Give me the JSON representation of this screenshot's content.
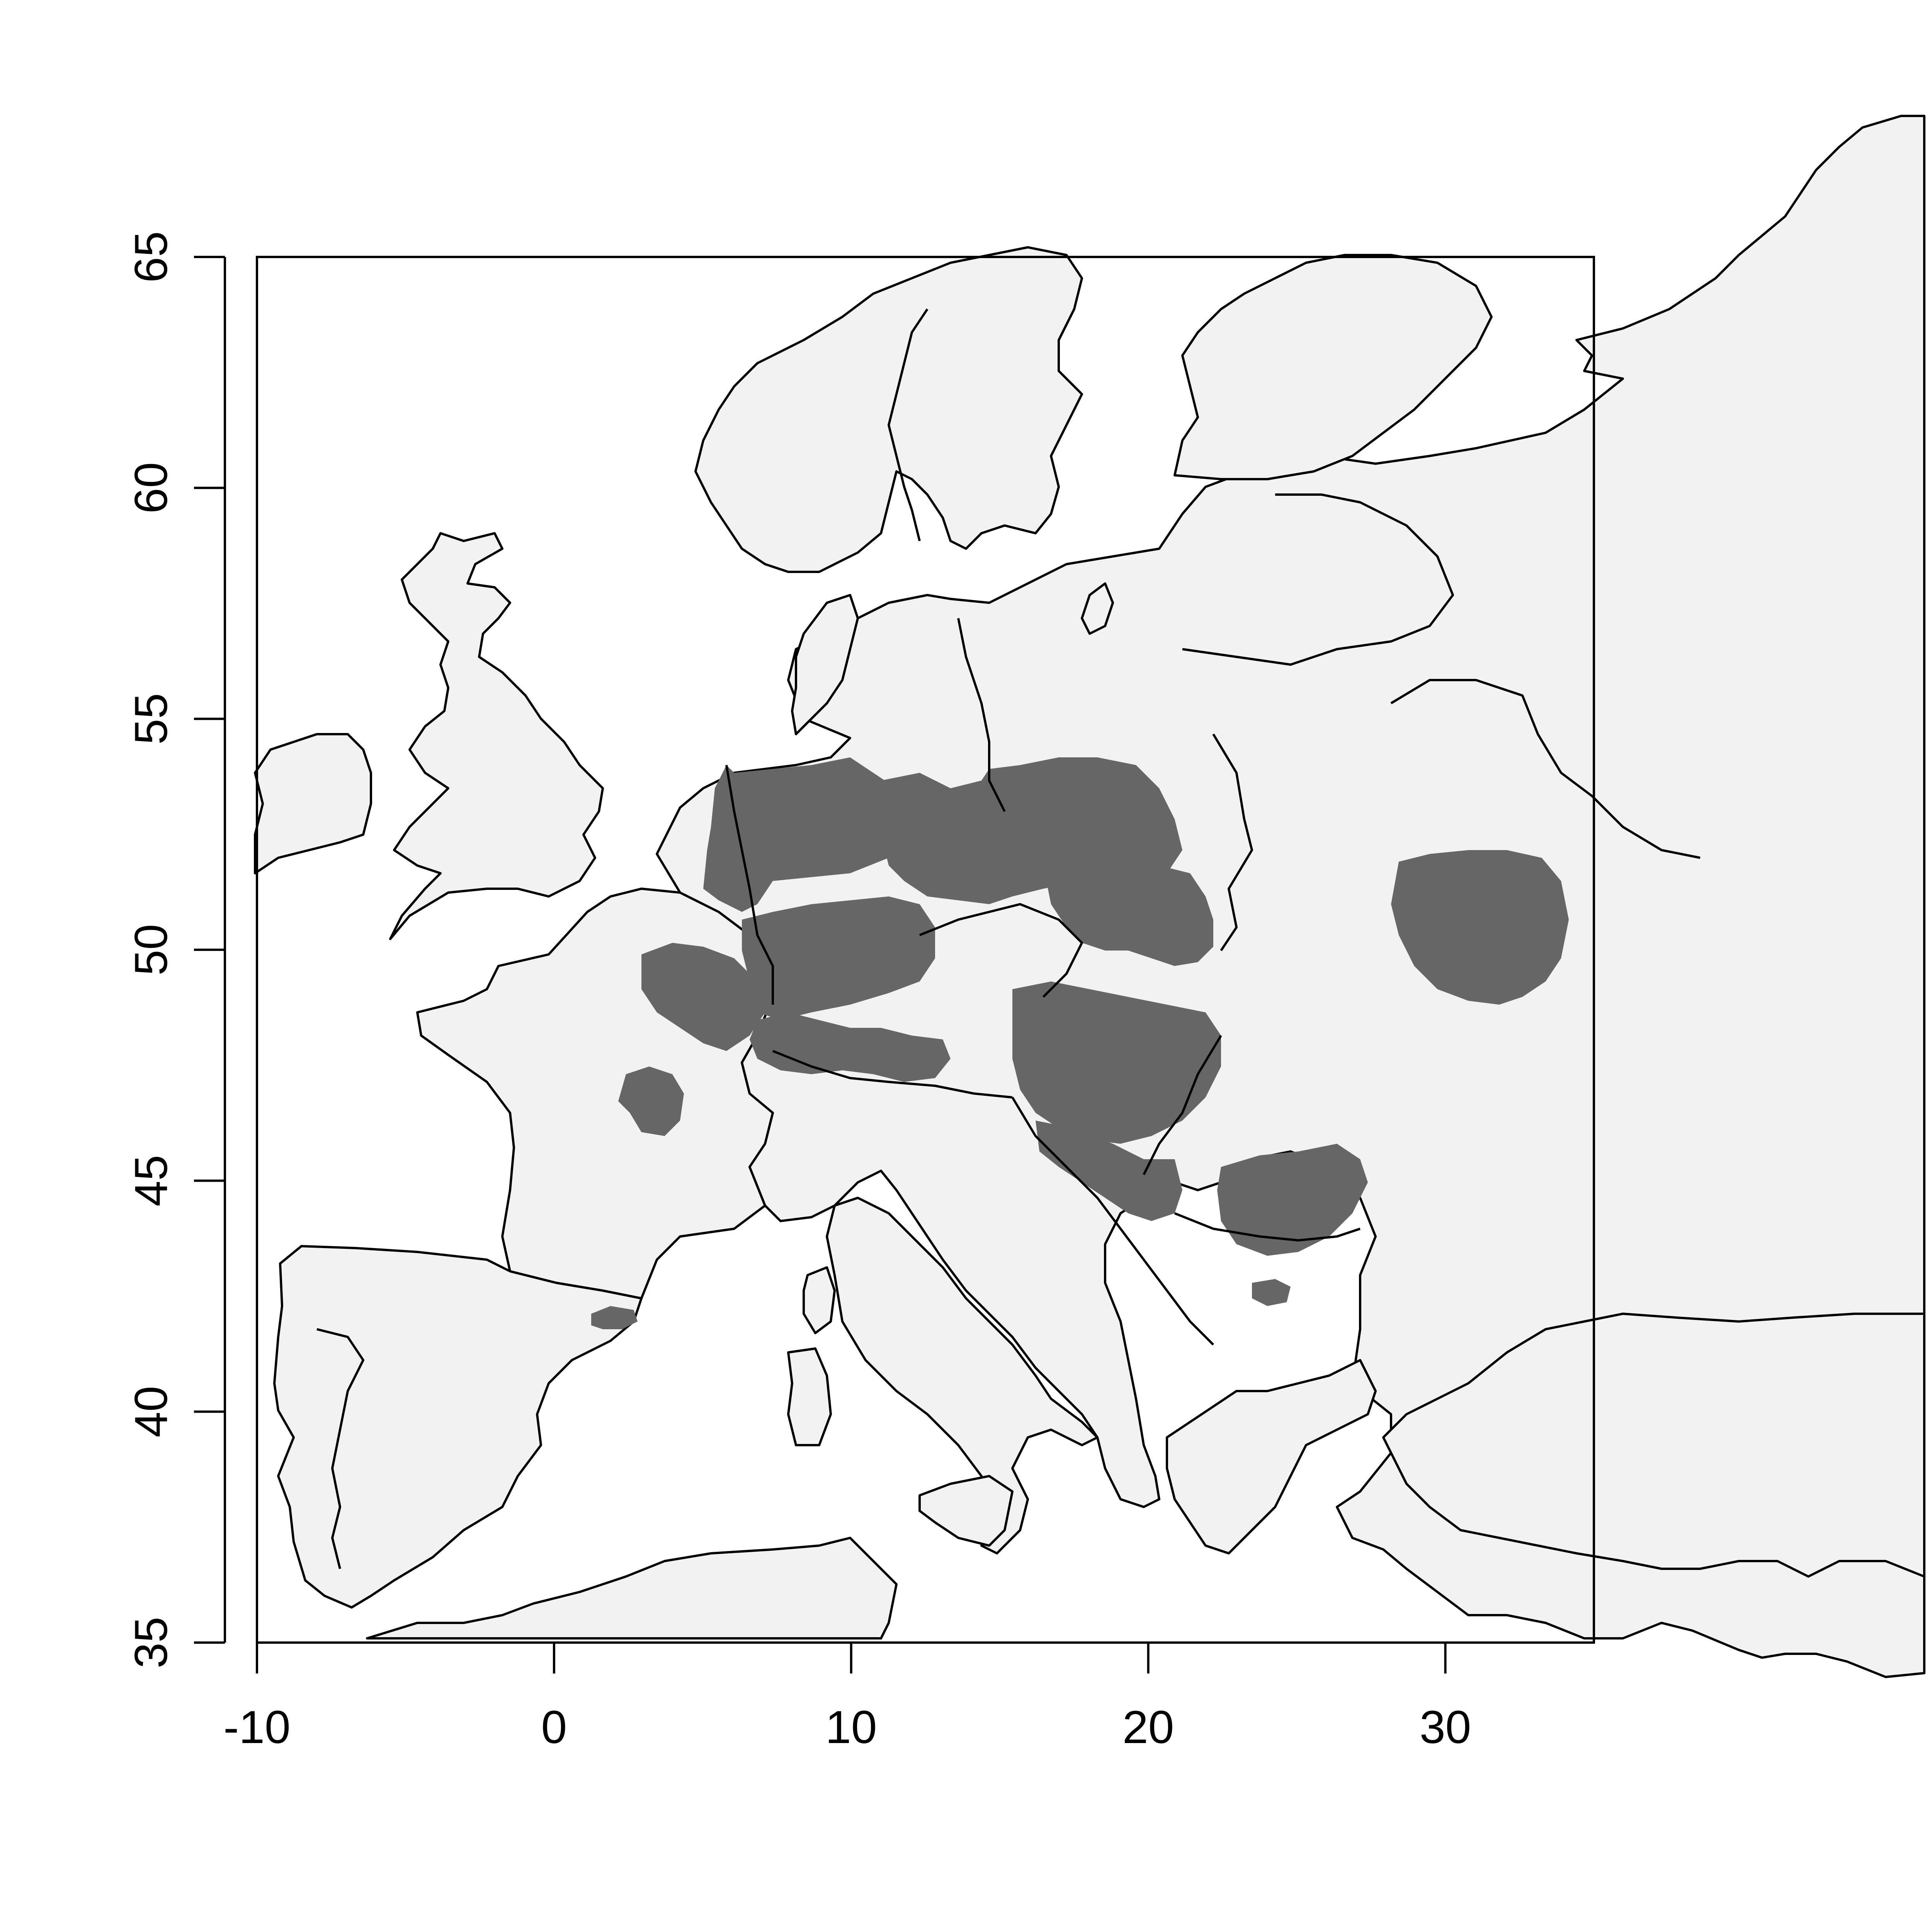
{
  "map": {
    "lon_range": [
      -10,
      35
    ],
    "lat_range": [
      35,
      65
    ],
    "x_ticks": [
      -10,
      0,
      10,
      20,
      30
    ],
    "y_ticks": [
      35,
      40,
      45,
      50,
      55,
      60,
      65
    ],
    "x_tick_labels": [
      "-10",
      "0",
      "10",
      "20",
      "30"
    ],
    "y_tick_labels": [
      "35",
      "40",
      "45",
      "50",
      "55",
      "60",
      "65"
    ],
    "colors": {
      "land": "#f2f2f2",
      "sea": "#ffffff",
      "distribution": "#666666",
      "outline": "#000000"
    }
  },
  "chart_data": {
    "type": "map",
    "projection": "longitude-latitude",
    "xlim": [
      -10,
      35
    ],
    "ylim": [
      35,
      65
    ],
    "layers": [
      {
        "name": "land",
        "shade": "light gray"
      },
      {
        "name": "species range",
        "shade": "dark gray"
      }
    ]
  }
}
